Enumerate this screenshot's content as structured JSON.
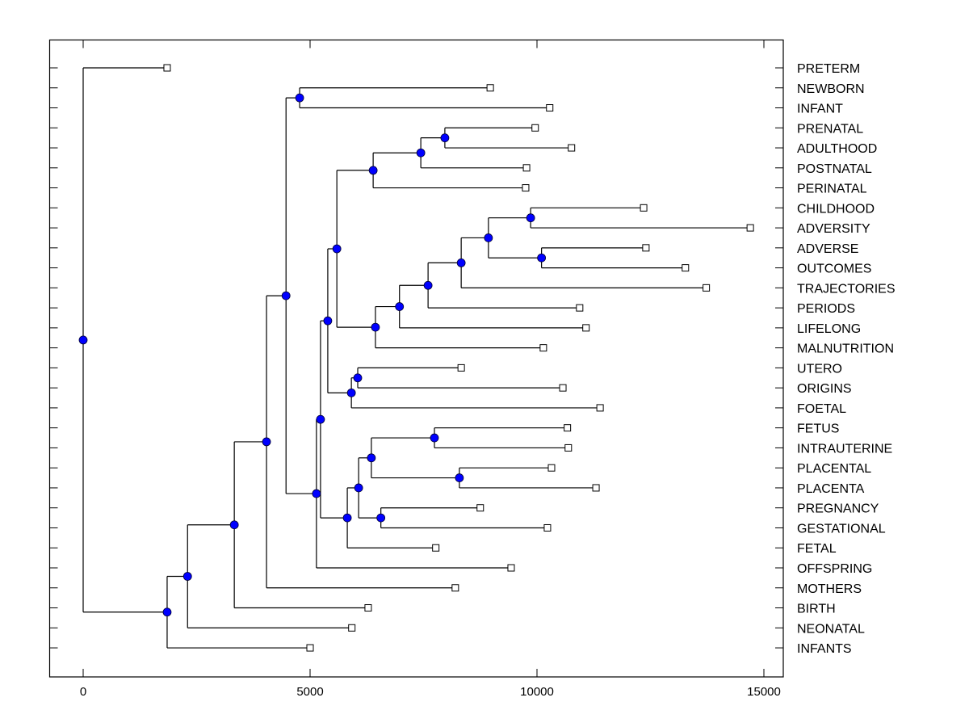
{
  "chart_data": {
    "type": "dendrogram",
    "title": "",
    "xlabel": "",
    "ylabel": "",
    "xlim": [
      -750,
      15450
    ],
    "xticks": [
      0,
      5000,
      10000,
      15000
    ],
    "xtick_labels": [
      "0",
      "5000",
      "10000",
      "15000"
    ],
    "grid": false,
    "legend": "none",
    "colors": {
      "node_fill": "#0000ff",
      "leaf_fill": "#ffffff",
      "line": "#000000"
    },
    "leaf_order": [
      "PRETERM",
      "NEWBORN",
      "INFANT",
      "PRENATAL",
      "ADULTHOOD",
      "POSTNATAL",
      "PERINATAL",
      "CHILDHOOD",
      "ADVERSITY",
      "ADVERSE",
      "OUTCOMES",
      "TRAJECTORIES",
      "PERIODS",
      "LIFELONG",
      "MALNUTRITION",
      "UTERO",
      "ORIGINS",
      "FOETAL",
      "FETUS",
      "INTRAUTERINE",
      "PLACENTAL",
      "PLACENTA",
      "PREGNANCY",
      "GESTATIONAL",
      "FETAL",
      "OFFSPRING",
      "MOTHERS",
      "BIRTH",
      "NEONATAL",
      "INFANTS"
    ],
    "tree": {
      "value": 0,
      "children": [
        {
          "leaf": "PRETERM",
          "value": 1850
        },
        {
          "value": 1850,
          "children": [
            {
              "value": 2300,
              "children": [
                {
                  "value": 3330,
                  "children": [
                    {
                      "value": 4040,
                      "children": [
                        {
                          "value": 4470,
                          "children": [
                            {
                              "value": 4770,
                              "children": [
                                {
                                  "leaf": "NEWBORN",
                                  "value": 8970
                                },
                                {
                                  "leaf": "INFANT",
                                  "value": 10280
                                }
                              ]
                            },
                            {
                              "value": 5140,
                              "children": [
                                {
                                  "value": 5230,
                                  "children": [
                                    {
                                      "value": 5390,
                                      "children": [
                                        {
                                          "value": 5590,
                                          "children": [
                                            {
                                              "value": 6390,
                                              "children": [
                                                {
                                                  "value": 7440,
                                                  "children": [
                                                    {
                                                      "value": 7970,
                                                      "children": [
                                                        {
                                                          "leaf": "PRENATAL",
                                                          "value": 9960
                                                        },
                                                        {
                                                          "leaf": "ADULTHOOD",
                                                          "value": 10760
                                                        }
                                                      ]
                                                    },
                                                    {
                                                      "leaf": "POSTNATAL",
                                                      "value": 9770
                                                    }
                                                  ]
                                                },
                                                {
                                                  "leaf": "PERINATAL",
                                                  "value": 9750
                                                }
                                              ]
                                            },
                                            {
                                              "value": 6440,
                                              "children": [
                                                {
                                                  "value": 6970,
                                                  "children": [
                                                    {
                                                      "value": 7600,
                                                      "children": [
                                                        {
                                                          "value": 8330,
                                                          "children": [
                                                            {
                                                              "value": 8930,
                                                              "children": [
                                                                {
                                                                  "value": 9860,
                                                                  "children": [
                                                                    {
                                                                      "leaf": "CHILDHOOD",
                                                                      "value": 12350
                                                                    },
                                                                    {
                                                                      "leaf": "ADVERSITY",
                                                                      "value": 14700
                                                                    }
                                                                  ]
                                                                },
                                                                {
                                                                  "value": 10100,
                                                                  "children": [
                                                                    {
                                                                      "leaf": "ADVERSE",
                                                                      "value": 12400
                                                                    },
                                                                    {
                                                                      "leaf": "OUTCOMES",
                                                                      "value": 13270
                                                                    }
                                                                  ]
                                                                }
                                                              ]
                                                            },
                                                            {
                                                              "leaf": "TRAJECTORIES",
                                                              "value": 13730
                                                            }
                                                          ]
                                                        },
                                                        {
                                                          "leaf": "PERIODS",
                                                          "value": 10940
                                                        }
                                                      ]
                                                    },
                                                    {
                                                      "leaf": "LIFELONG",
                                                      "value": 11080
                                                    }
                                                  ]
                                                },
                                                {
                                                  "leaf": "MALNUTRITION",
                                                  "value": 10140
                                                }
                                              ]
                                            }
                                          ]
                                        },
                                        {
                                          "value": 5910,
                                          "children": [
                                            {
                                              "value": 6050,
                                              "children": [
                                                {
                                                  "leaf": "UTERO",
                                                  "value": 8330
                                                },
                                                {
                                                  "leaf": "ORIGINS",
                                                  "value": 10570
                                                }
                                              ]
                                            },
                                            {
                                              "leaf": "FOETAL",
                                              "value": 11390
                                            }
                                          ]
                                        }
                                      ]
                                    },
                                    {
                                      "value": 5820,
                                      "children": [
                                        {
                                          "value": 6070,
                                          "children": [
                                            {
                                              "value": 6350,
                                              "children": [
                                                {
                                                  "value": 7740,
                                                  "children": [
                                                    {
                                                      "leaf": "FETUS",
                                                      "value": 10670
                                                    },
                                                    {
                                                      "leaf": "INTRAUTERINE",
                                                      "value": 10690
                                                    }
                                                  ]
                                                },
                                                {
                                                  "value": 8290,
                                                  "children": [
                                                    {
                                                      "leaf": "PLACENTAL",
                                                      "value": 10320
                                                    },
                                                    {
                                                      "leaf": "PLACENTA",
                                                      "value": 11300
                                                    }
                                                  ]
                                                }
                                              ]
                                            },
                                            {
                                              "value": 6560,
                                              "children": [
                                                {
                                                  "leaf": "PREGNANCY",
                                                  "value": 8750
                                                },
                                                {
                                                  "leaf": "GESTATIONAL",
                                                  "value": 10230
                                                }
                                              ]
                                            }
                                          ]
                                        },
                                        {
                                          "leaf": "FETAL",
                                          "value": 7770
                                        }
                                      ]
                                    }
                                  ]
                                },
                                {
                                  "leaf": "OFFSPRING",
                                  "value": 9430
                                }
                              ]
                            }
                          ]
                        },
                        {
                          "leaf": "MOTHERS",
                          "value": 8200
                        }
                      ]
                    },
                    {
                      "leaf": "BIRTH",
                      "value": 6280
                    }
                  ]
                },
                {
                  "leaf": "NEONATAL",
                  "value": 5920
                }
              ]
            },
            {
              "leaf": "INFANTS",
              "value": 5000
            }
          ]
        }
      ]
    }
  }
}
